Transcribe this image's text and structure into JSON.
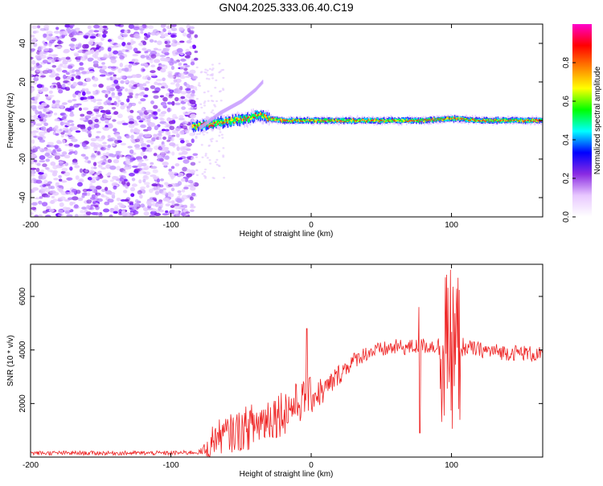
{
  "title": "GN04.2025.333.06.40.C19",
  "chart_data": [
    {
      "type": "heatmap",
      "title": "GN04.2025.333.06.40.C19",
      "xlabel": "Height of straight line (km)",
      "ylabel": "Frequency (Hz)",
      "xlim": [
        -200,
        165
      ],
      "ylim": [
        -50,
        50
      ],
      "xticks": [
        -200,
        -100,
        0,
        100
      ],
      "yticks": [
        40,
        20,
        0,
        -20,
        -40
      ],
      "colorbar": {
        "label": "Normalized spectral amplitude",
        "range": [
          0,
          1
        ],
        "ticks": [
          "0.0",
          "0.2",
          "0.4",
          "0.6",
          "0.8"
        ],
        "colors": [
          "#ffffff",
          "#e8c8ff",
          "#8a2be2",
          "#0000ff",
          "#00ffff",
          "#00ff00",
          "#ffff00",
          "#ff8000",
          "#ff0000",
          "#ff00cc"
        ]
      },
      "noise_region_km": [
        -200,
        -82
      ],
      "trace": {
        "description_values": "centroid frequency vs height",
        "x": [
          -85,
          -75,
          -65,
          -55,
          -45,
          -38,
          -30,
          -20,
          -10,
          0,
          20,
          40,
          60,
          80,
          100,
          120,
          140,
          165
        ],
        "y": [
          -3,
          -2,
          -1,
          0,
          1,
          3,
          1,
          0,
          0,
          0,
          0,
          0,
          0,
          0,
          1,
          0,
          0,
          0
        ],
        "branch": {
          "x": [
            -80,
            -65,
            -50,
            -40,
            -35
          ],
          "y": [
            -4,
            4,
            10,
            16,
            20
          ]
        }
      }
    },
    {
      "type": "line",
      "xlabel": "Height of straight line (km)",
      "ylabel": "SNR (10 * v/v)",
      "xlim": [
        -200,
        165
      ],
      "ylim": [
        0,
        7200
      ],
      "xticks": [
        -200,
        -100,
        0,
        100
      ],
      "yticks": [
        2000,
        4000,
        6000
      ],
      "series": [
        {
          "name": "SNR",
          "color": "#ee2222",
          "x": [
            -200,
            -180,
            -160,
            -140,
            -120,
            -100,
            -80,
            -72,
            -70,
            -60,
            -50,
            -40,
            -30,
            -20,
            -10,
            0,
            10,
            20,
            30,
            40,
            50,
            60,
            70,
            80,
            90,
            95,
            100,
            110,
            120,
            130,
            140,
            150,
            165
          ],
          "y": [
            150,
            150,
            150,
            150,
            150,
            150,
            180,
            300,
            700,
            850,
            1000,
            1200,
            1500,
            1700,
            2000,
            2300,
            2500,
            3100,
            3600,
            3900,
            4000,
            4100,
            4100,
            4150,
            4150,
            4000,
            4000,
            4100,
            4000,
            3950,
            3900,
            3900,
            3800
          ],
          "amplitude": [
            80,
            80,
            80,
            80,
            80,
            80,
            80,
            500,
            600,
            700,
            800,
            900,
            900,
            900,
            800,
            700,
            500,
            400,
            300,
            300,
            300,
            300,
            300,
            300,
            300,
            900,
            900,
            300,
            300,
            300,
            300,
            300,
            300
          ]
        }
      ]
    }
  ]
}
